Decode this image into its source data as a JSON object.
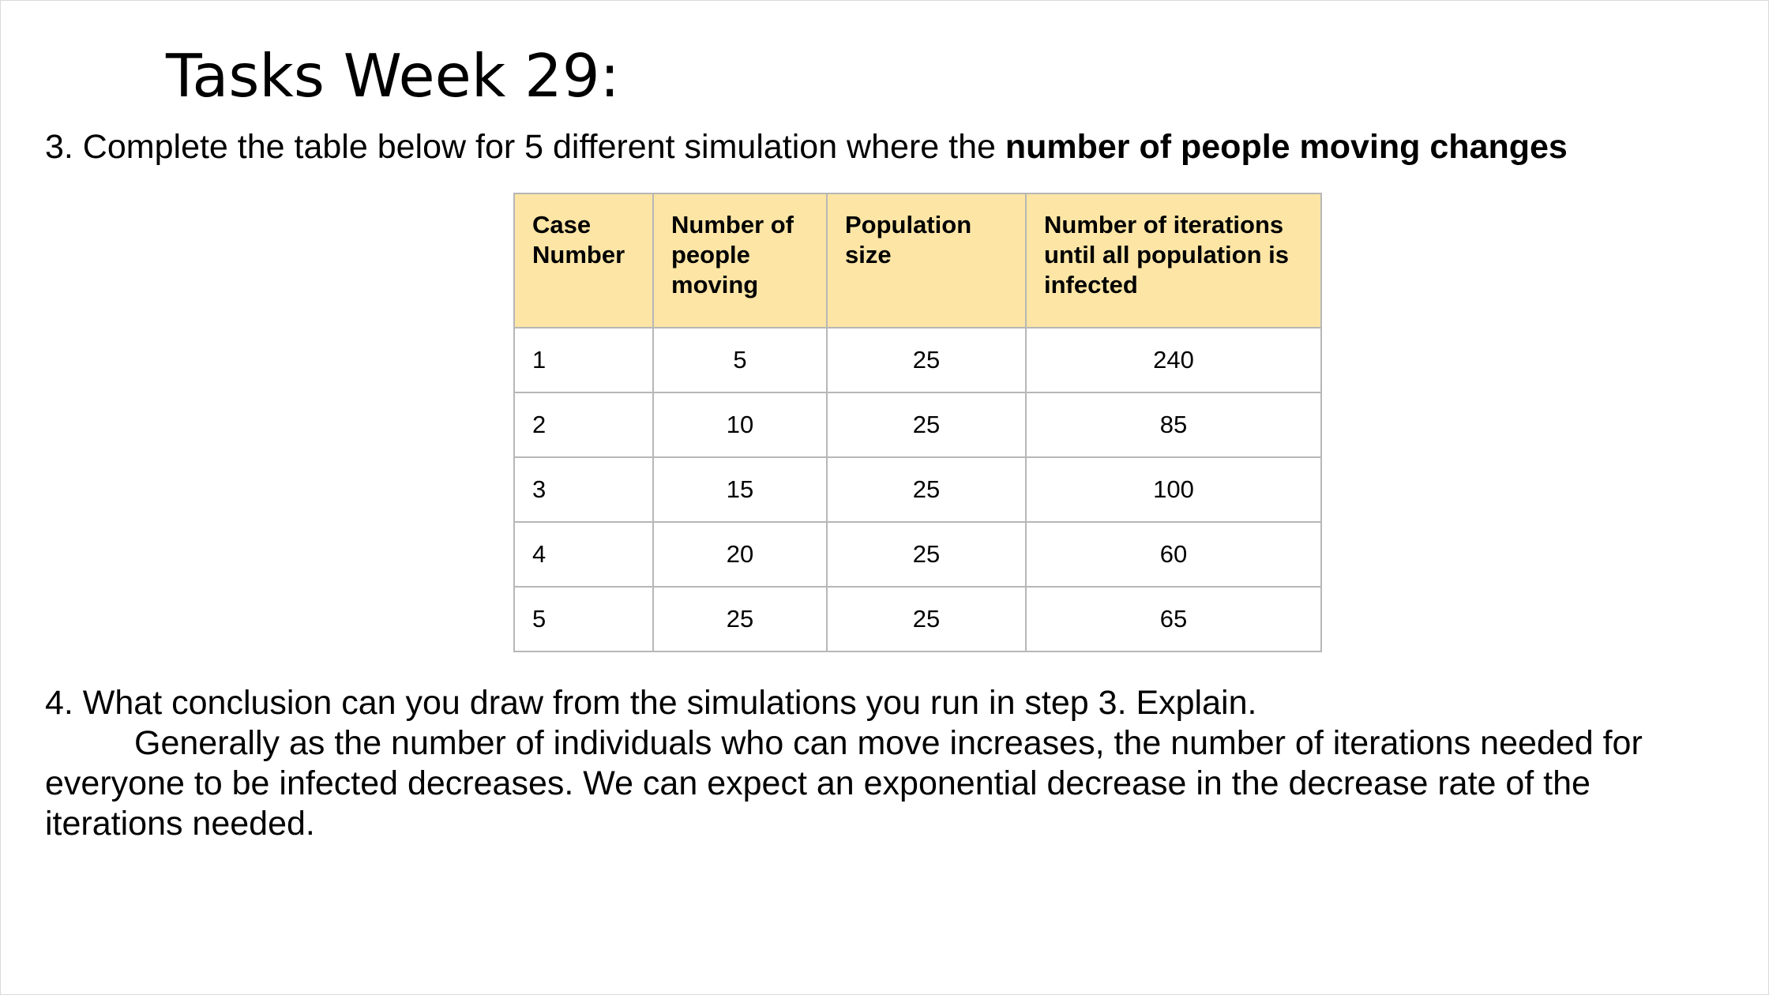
{
  "title": "Tasks Week 29:",
  "question3": {
    "prefix": "3. Complete the table below for 5 different simulation where the ",
    "bold": "number of people moving changes"
  },
  "table": {
    "headers": [
      "Case Number",
      "Number of people moving",
      "Population size",
      "Number of iterations until all population is infected"
    ],
    "rows": [
      [
        "1",
        "5",
        "25",
        "240"
      ],
      [
        "2",
        "10",
        "25",
        "85"
      ],
      [
        "3",
        "15",
        "25",
        "100"
      ],
      [
        "4",
        "20",
        "25",
        "60"
      ],
      [
        "5",
        "25",
        "25",
        "65"
      ]
    ],
    "header_color": "#fce5a5",
    "border_color": "#b7b7b7"
  },
  "question4": {
    "prompt": "4. What conclusion can you draw from the simulations you run in step 3. Explain.",
    "answer": "Generally as the number of individuals who can move increases, the number of iterations needed for everyone to be infected decreases. We can expect an exponential decrease in the decrease rate of the iterations needed."
  }
}
